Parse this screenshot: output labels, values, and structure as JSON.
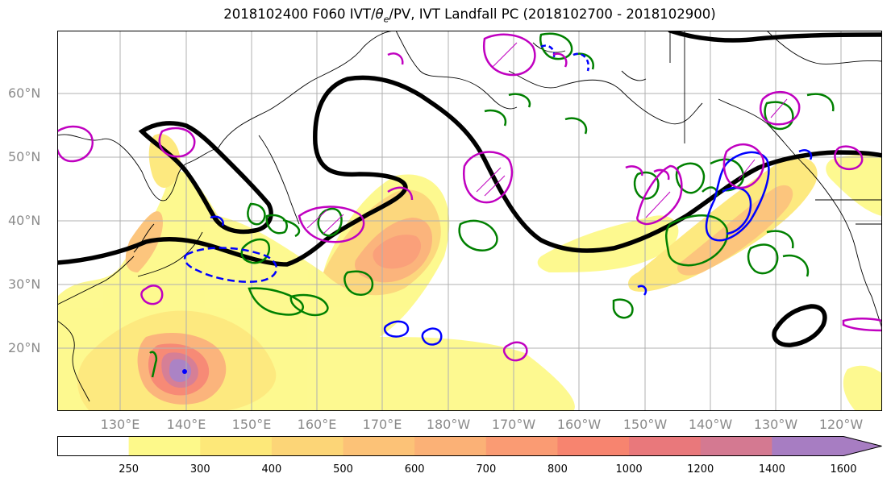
{
  "title": {
    "prefix": "2018102400 F060 IVT/",
    "theta": "θ",
    "sub": "e",
    "suffix": "/PV, IVT Landfall PC (2018102700 - 2018102900)"
  },
  "axes": {
    "lat_labels": [
      "60°N",
      "50°N",
      "40°N",
      "30°N",
      "20°N"
    ],
    "lon_labels": [
      "130°E",
      "140°E",
      "150°E",
      "160°E",
      "170°E",
      "180°W",
      "170°W",
      "160°W",
      "150°W",
      "140°W",
      "130°W",
      "120°W"
    ],
    "grid": true
  },
  "colorbar": {
    "ticks": [
      "250",
      "300",
      "400",
      "500",
      "600",
      "700",
      "800",
      "1000",
      "1200",
      "1400",
      "1600"
    ],
    "colors": [
      "#ffffff",
      "#fdf98a",
      "#fde879",
      "#fcd577",
      "#fcc277",
      "#fbb176",
      "#fa9b73",
      "#f7846f",
      "#e9787b",
      "#d47991",
      "#a77dc2"
    ]
  },
  "colors": {
    "contour_thick": "#000000",
    "contour_green": "#008000",
    "contour_blue": "#0000ff",
    "contour_magenta": "#c000c0",
    "coastline": "#000000",
    "grid": "#b0b0b0"
  }
}
